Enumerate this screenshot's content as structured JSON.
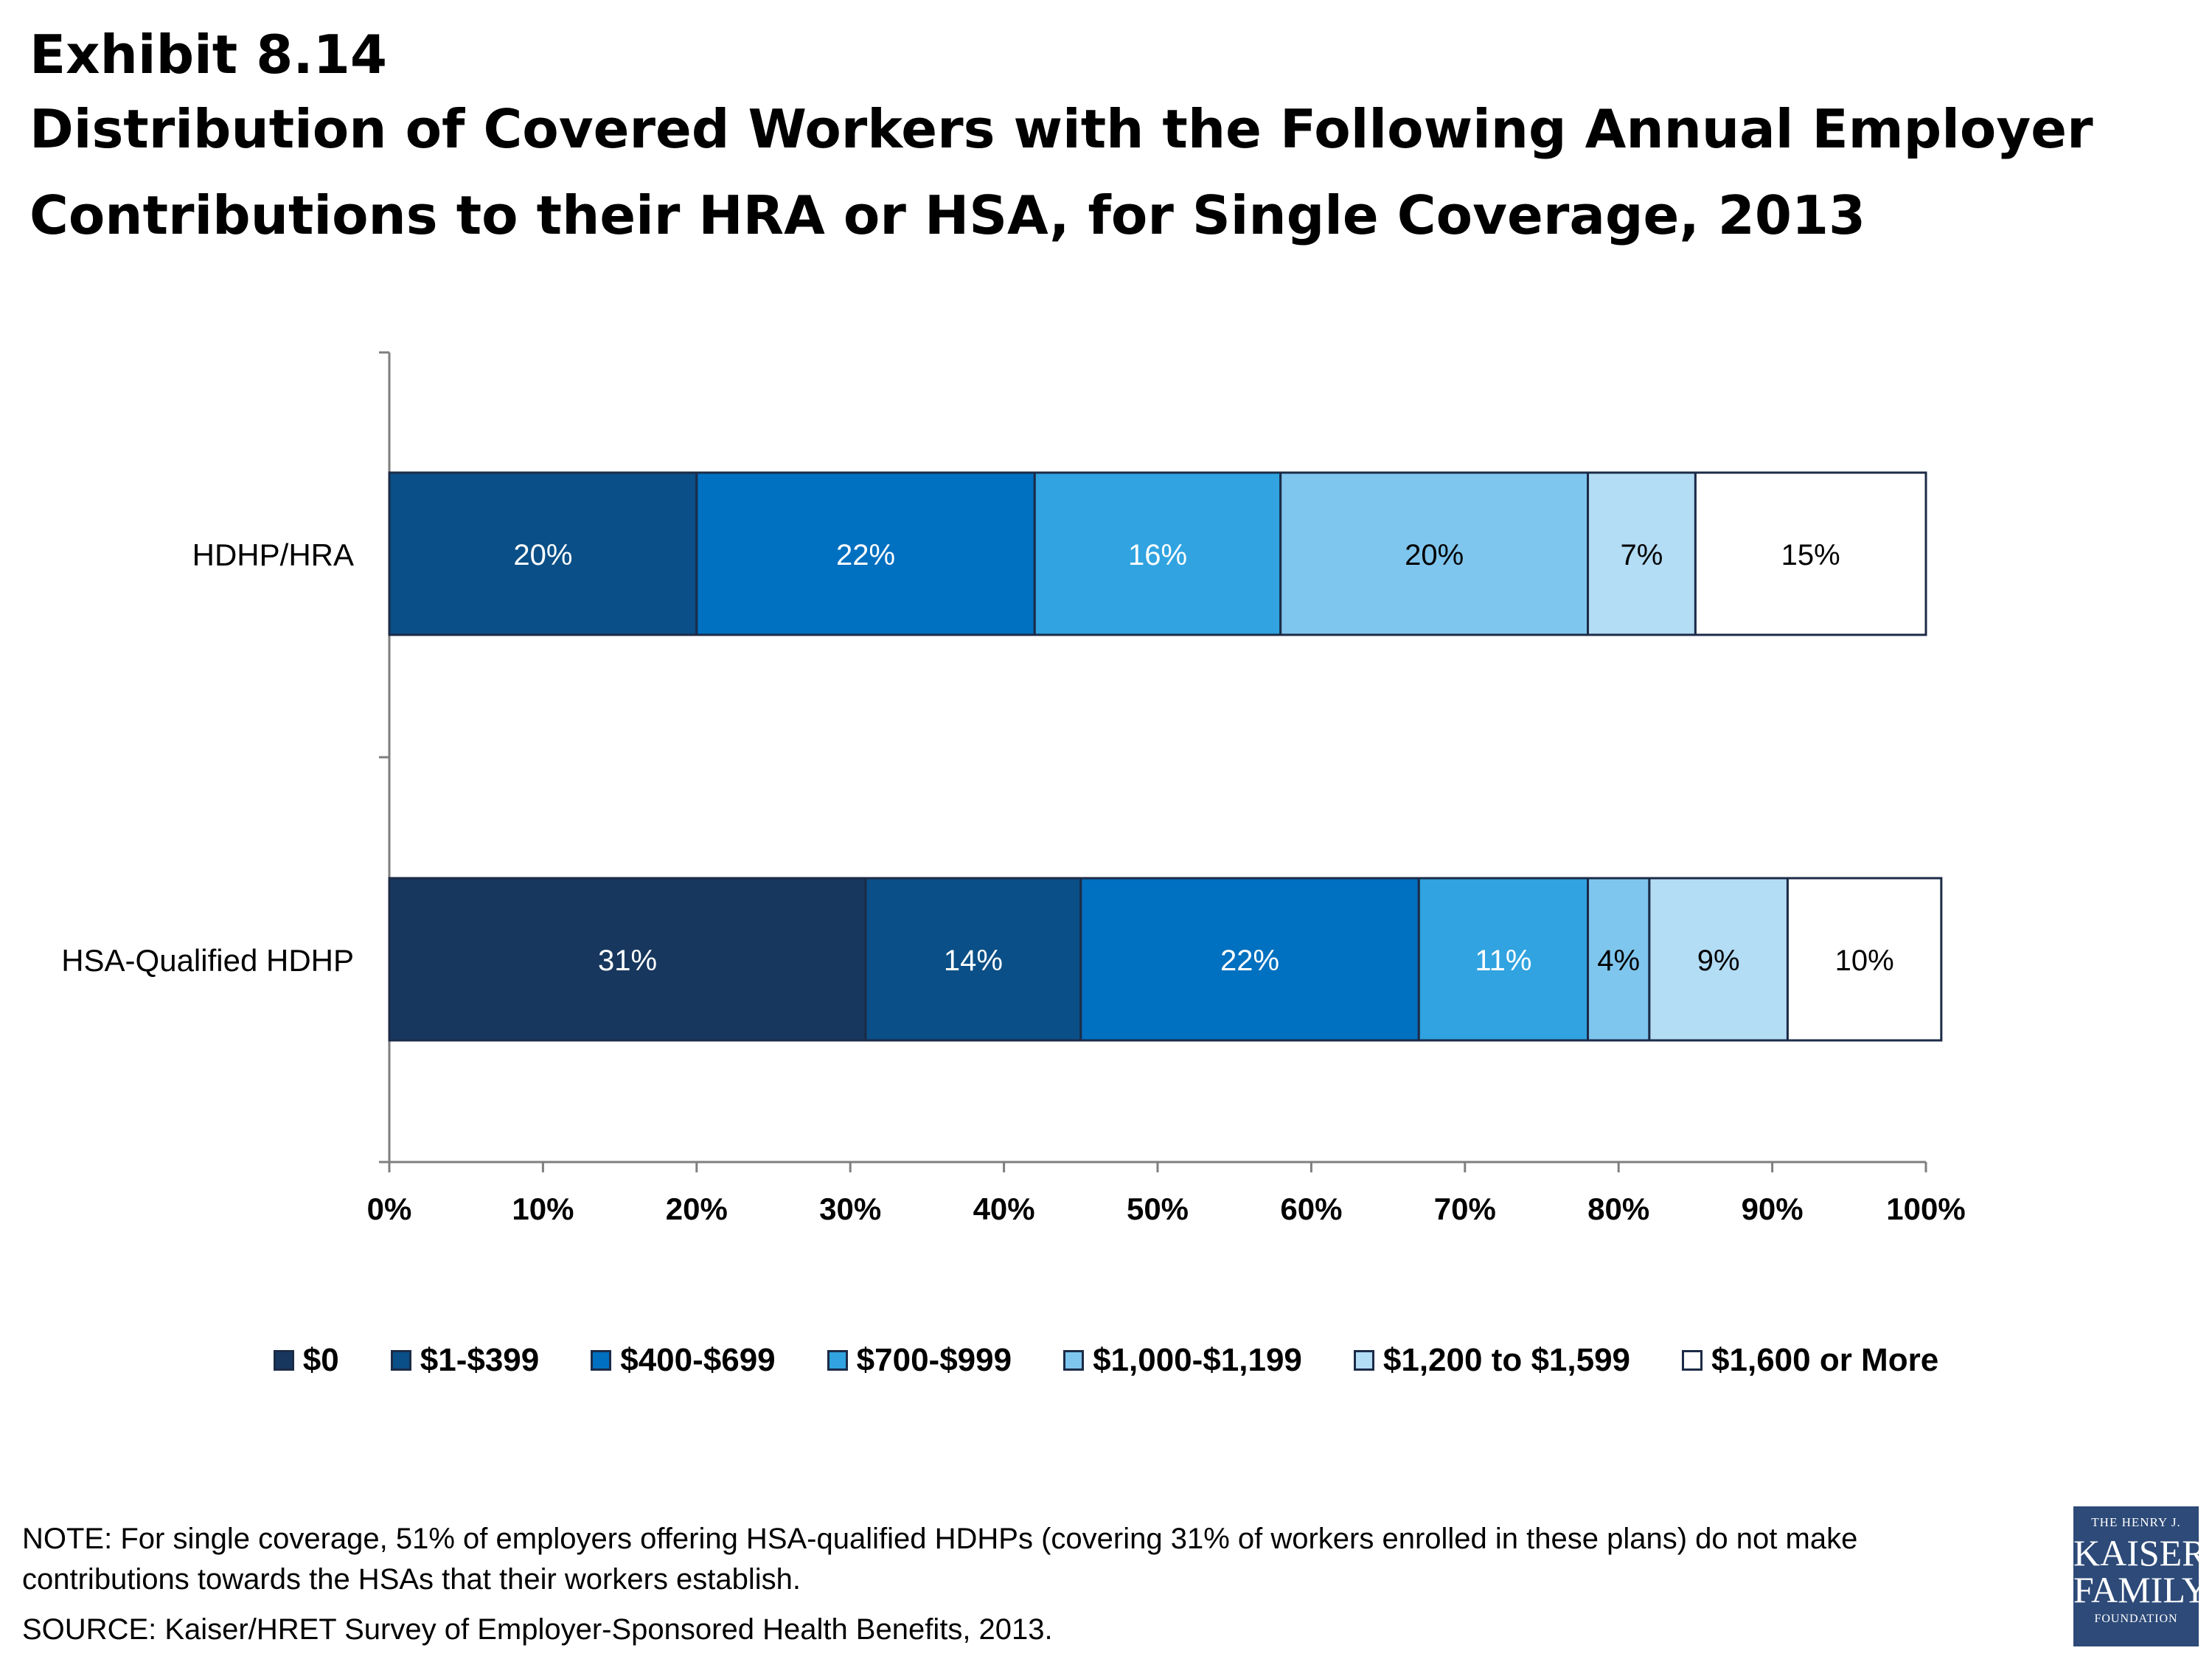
{
  "header": {
    "exhibit": "Exhibit 8.14",
    "title_line1": "Distribution of Covered Workers with the Following Annual Employer",
    "title_line2": "Contributions to their HRA or HSA, for Single Coverage, 2013"
  },
  "chart_data": {
    "type": "bar",
    "orientation": "horizontal",
    "stacked": true,
    "categories": [
      "HDHP/HRA",
      "HSA-Qualified HDHP"
    ],
    "series": [
      {
        "name": "$0",
        "color": "#17375e",
        "values": [
          0,
          31
        ]
      },
      {
        "name": "$1-$399",
        "color": "#0a4f87",
        "values": [
          20,
          14
        ]
      },
      {
        "name": "$400-$699",
        "color": "#0070c0",
        "values": [
          22,
          22
        ]
      },
      {
        "name": "$700-$999",
        "color": "#30a3e0",
        "values": [
          16,
          11
        ]
      },
      {
        "name": "$1,000-$1,199",
        "color": "#7fc6ee",
        "values": [
          20,
          4
        ]
      },
      {
        "name": "$1,200 to $1,599",
        "color": "#b3dcf5",
        "values": [
          7,
          9
        ]
      },
      {
        "name": "$1,600 or More",
        "color": "#ffffff",
        "values": [
          15,
          10
        ]
      }
    ],
    "data_labels": [
      [
        "20%",
        "22%",
        "16%",
        "20%",
        "7%",
        "15%"
      ],
      [
        "31%",
        "14%",
        "22%",
        "11%",
        "4%",
        "9%",
        "10%"
      ]
    ],
    "x_ticks": [
      "0%",
      "10%",
      "20%",
      "30%",
      "40%",
      "50%",
      "60%",
      "70%",
      "80%",
      "90%",
      "100%"
    ],
    "xlim": [
      0,
      100
    ],
    "grid": false,
    "legend_position": "bottom"
  },
  "footer": {
    "note": "NOTE: For single coverage, 51% of employers offering HSA-qualified HDHPs (covering 31% of workers enrolled in these plans) do not make contributions towards the HSAs that their workers establish.",
    "source": "SOURCE:  Kaiser/HRET Survey of Employer-Sponsored Health Benefits, 2013."
  },
  "logo": {
    "line1": "THE HENRY J.",
    "line2": "KAISER",
    "line3": "FAMILY",
    "line4": "FOUNDATION"
  }
}
